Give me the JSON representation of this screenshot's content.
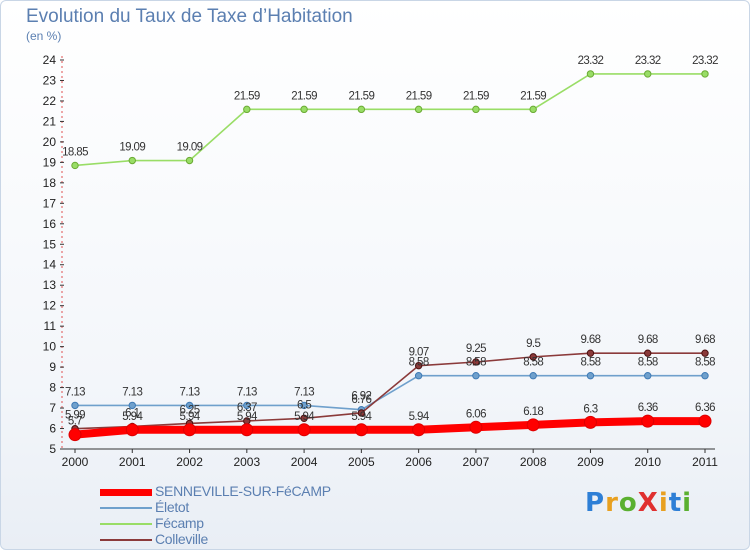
{
  "title": "Evolution du Taux de Taxe d’Habitation",
  "unit": "(en %)",
  "logo": "ProXiti",
  "chart_data": {
    "type": "line",
    "title": "Evolution du Taux de Taxe d’Habitation",
    "ylabel": "(en %)",
    "x": [
      "2000",
      "2001",
      "2002",
      "2003",
      "2004",
      "2005",
      "2006",
      "2007",
      "2008",
      "2009",
      "2010",
      "2011"
    ],
    "ylim": [
      5,
      24
    ],
    "yticks": [
      "5",
      "6",
      "7",
      "8",
      "9",
      "10",
      "11",
      "12",
      "13",
      "14",
      "15",
      "16",
      "17",
      "18",
      "19",
      "20",
      "21",
      "22",
      "23",
      "24"
    ],
    "grid": false,
    "legend_position": "bottom-left",
    "series": [
      {
        "name": "SENNEVILLE-SUR-FéCAMP",
        "color": "#ff0000",
        "values": [
          5.7,
          5.94,
          5.94,
          5.94,
          5.94,
          5.94,
          5.94,
          6.06,
          6.18,
          6.3,
          6.36,
          6.36
        ],
        "labels": [
          "5.7",
          "5.94",
          "5.94",
          "5.94",
          "5.94",
          "5.94",
          "5.94",
          "6.06",
          "6.18",
          "6.3",
          "6.36",
          "6.36"
        ],
        "thick": true
      },
      {
        "name": "Életot",
        "color": "#6fa0cc",
        "values": [
          7.13,
          7.13,
          7.13,
          7.13,
          7.13,
          6.92,
          8.58,
          8.58,
          8.58,
          8.58,
          8.58,
          8.58
        ],
        "labels": [
          "7.13",
          "7.13",
          "7.13",
          "7.13",
          "7.13",
          "6.92",
          "8.58",
          "8.58",
          "8.58",
          "8.58",
          "8.58",
          "8.58"
        ]
      },
      {
        "name": "Fécamp",
        "color": "#99dd66",
        "values": [
          18.85,
          19.09,
          19.09,
          21.59,
          21.59,
          21.59,
          21.59,
          21.59,
          21.59,
          23.32,
          23.32,
          23.32
        ],
        "labels": [
          "18.85",
          "19.09",
          "19.09",
          "21.59",
          "21.59",
          "21.59",
          "21.59",
          "21.59",
          "21.59",
          "23.32",
          "23.32",
          "23.32"
        ]
      },
      {
        "name": "Colleville",
        "color": "#8b3a3a",
        "values": [
          5.99,
          6.1,
          6.25,
          6.37,
          6.5,
          6.76,
          9.07,
          9.25,
          9.5,
          9.68,
          9.68,
          9.68
        ],
        "labels": [
          "5.99",
          "6.1",
          "6.25",
          "6.37",
          "6.5",
          "6.76",
          "9.07",
          "9.25",
          "9.5",
          "9.68",
          "9.68",
          "9.68"
        ]
      }
    ]
  }
}
